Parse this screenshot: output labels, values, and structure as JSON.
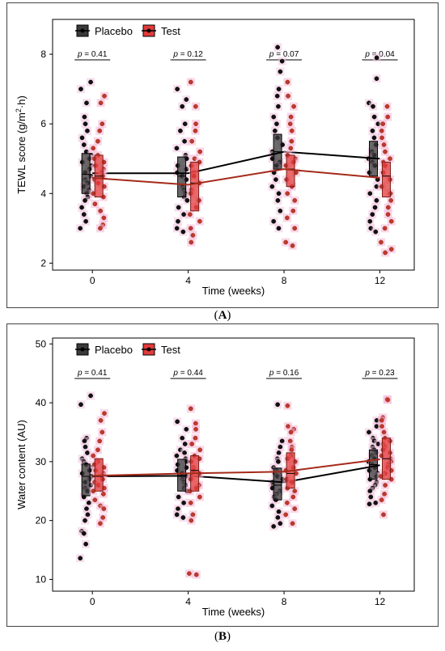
{
  "chart_data": [
    {
      "panel_label": "A",
      "type": "box",
      "xlabel": "Time (weeks)",
      "ylabel_main": "TEWL score (g/m",
      "ylabel_sup": "2",
      "ylabel_tail": "·h)",
      "categories": [
        "0",
        "4",
        "8",
        "12"
      ],
      "ylim": [
        1.8,
        9.0
      ],
      "yticks": [
        2,
        4,
        6,
        8
      ],
      "p_values": [
        "p = 0.41",
        "p = 0.12",
        "p = 0.07",
        "p = 0.04"
      ],
      "legend": {
        "placement": "top-left",
        "items": [
          "Placebo",
          "Test"
        ]
      },
      "series": [
        {
          "name": "Placebo",
          "color": "#1a1a1a",
          "means": [
            4.58,
            4.58,
            5.2,
            5.0
          ],
          "boxes": [
            [
              4.0,
              4.55,
              5.15
            ],
            [
              3.9,
              4.5,
              5.05
            ],
            [
              4.7,
              5.2,
              5.7
            ],
            [
              4.5,
              5.0,
              5.5
            ]
          ],
          "points": [
            [
              7.2,
              7.0,
              6.6,
              6.2,
              6.0,
              5.8,
              5.6,
              5.4,
              5.2,
              5.1,
              5.0,
              4.9,
              4.8,
              4.7,
              4.6,
              4.5,
              4.4,
              4.3,
              4.2,
              4.1,
              4.0,
              3.9,
              3.8,
              3.6,
              3.4,
              3.2,
              3.0
            ],
            [
              7.0,
              6.7,
              6.5,
              6.0,
              5.8,
              5.5,
              5.3,
              5.1,
              5.0,
              4.8,
              4.7,
              4.6,
              4.5,
              4.4,
              4.2,
              4.1,
              4.0,
              3.9,
              3.8,
              3.6,
              3.4,
              3.2,
              3.0,
              2.9
            ],
            [
              8.2,
              7.8,
              7.5,
              7.0,
              6.8,
              6.5,
              6.2,
              6.0,
              5.8,
              5.6,
              5.4,
              5.2,
              5.1,
              5.0,
              4.9,
              4.8,
              4.6,
              4.4,
              4.2,
              4.0,
              3.8,
              3.5,
              3.2,
              3.0
            ],
            [
              7.9,
              7.3,
              6.6,
              6.5,
              6.2,
              6.0,
              5.8,
              5.6,
              5.4,
              5.2,
              5.1,
              5.0,
              4.9,
              4.8,
              4.6,
              4.4,
              4.2,
              4.0,
              3.8,
              3.6,
              3.4,
              3.2,
              3.0,
              2.9
            ]
          ]
        },
        {
          "name": "Test",
          "color": "#d32f2f",
          "means": [
            4.45,
            4.25,
            4.7,
            4.45
          ],
          "boxes": [
            [
              3.9,
              4.5,
              5.1
            ],
            [
              3.5,
              4.3,
              4.9
            ],
            [
              4.2,
              4.7,
              5.1
            ],
            [
              3.9,
              4.5,
              4.9
            ]
          ],
          "points": [
            [
              6.8,
              6.6,
              6.0,
              5.8,
              5.5,
              5.3,
              5.1,
              5.0,
              4.9,
              4.8,
              4.7,
              4.6,
              4.5,
              4.4,
              4.3,
              4.2,
              4.0,
              3.9,
              3.7,
              3.5,
              3.3,
              3.1,
              3.0
            ],
            [
              7.2,
              6.5,
              6.0,
              5.8,
              5.5,
              5.2,
              5.0,
              4.9,
              4.8,
              4.6,
              4.5,
              4.3,
              4.1,
              4.0,
              3.8,
              3.6,
              3.4,
              3.2,
              3.0,
              2.8,
              2.6
            ],
            [
              7.2,
              6.8,
              6.5,
              6.2,
              6.0,
              5.8,
              5.5,
              5.3,
              5.1,
              5.0,
              4.9,
              4.8,
              4.6,
              4.4,
              4.2,
              4.0,
              3.8,
              3.5,
              3.3,
              3.0,
              2.6,
              2.5
            ],
            [
              6.5,
              6.2,
              6.0,
              5.8,
              5.6,
              5.4,
              5.2,
              5.0,
              4.9,
              4.8,
              4.6,
              4.4,
              4.2,
              4.0,
              3.8,
              3.6,
              3.4,
              3.2,
              3.0,
              2.6,
              2.4,
              2.3
            ]
          ]
        }
      ]
    },
    {
      "panel_label": "B",
      "type": "box",
      "xlabel": "Time (weeks)",
      "ylabel_main": "Water content (AU)",
      "ylabel_sup": "",
      "ylabel_tail": "",
      "categories": [
        "0",
        "4",
        "8",
        "12"
      ],
      "ylim": [
        8,
        51
      ],
      "yticks": [
        10,
        20,
        30,
        40,
        50
      ],
      "p_values": [
        "p = 0.41",
        "p = 0.44",
        "p = 0.16",
        "p = 0.23"
      ],
      "legend": {
        "placement": "top-left",
        "items": [
          "Placebo",
          "Test"
        ]
      },
      "series": [
        {
          "name": "Placebo",
          "color": "#1a1a1a",
          "means": [
            27.5,
            27.6,
            26.5,
            29.4
          ],
          "boxes": [
            [
              24.2,
              27.5,
              29.6
            ],
            [
              25.0,
              28.0,
              30.4
            ],
            [
              23.5,
              26.0,
              28.9
            ],
            [
              27.0,
              29.5,
              32.0
            ]
          ],
          "points": [
            [
              41.2,
              39.7,
              34.0,
              33.5,
              32.5,
              31.5,
              30.5,
              30.0,
              29.5,
              29.0,
              28.5,
              28.0,
              27.5,
              27.0,
              26.5,
              26.0,
              25.5,
              25.0,
              24.0,
              23.0,
              22.0,
              21.0,
              20.0,
              18.2,
              17.8,
              16.0,
              13.6
            ],
            [
              36.8,
              35.5,
              34.0,
              33.0,
              32.0,
              31.5,
              31.0,
              30.5,
              30.0,
              29.5,
              29.0,
              28.5,
              28.0,
              27.5,
              27.0,
              26.5,
              26.0,
              25.5,
              25.0,
              24.0,
              23.0,
              22.0,
              21.0,
              20.5
            ],
            [
              39.7,
              33.5,
              32.5,
              31.5,
              30.5,
              30.0,
              29.0,
              28.5,
              28.0,
              27.5,
              27.0,
              26.5,
              26.0,
              25.5,
              25.0,
              24.5,
              24.0,
              23.5,
              22.5,
              21.5,
              20.5,
              19.5,
              19.0
            ],
            [
              37.0,
              36.0,
              35.0,
              34.0,
              33.5,
              33.0,
              32.5,
              32.0,
              31.5,
              31.0,
              30.5,
              30.0,
              29.5,
              29.0,
              28.5,
              28.0,
              27.5,
              27.0,
              26.5,
              26.0,
              25.5,
              25.0,
              24.0,
              23.0,
              22.8
            ]
          ]
        },
        {
          "name": "Test",
          "color": "#d32f2f",
          "means": [
            27.6,
            28.0,
            28.3,
            30.4
          ],
          "boxes": [
            [
              25.0,
              27.5,
              30.5
            ],
            [
              25.0,
              28.5,
              31.0
            ],
            [
              25.5,
              28.0,
              31.5
            ],
            [
              27.0,
              30.5,
              34.0
            ]
          ],
          "points": [
            [
              38.2,
              37.0,
              35.0,
              33.5,
              32.0,
              31.0,
              30.0,
              29.5,
              29.0,
              28.5,
              28.0,
              27.5,
              27.0,
              26.5,
              26.0,
              25.5,
              25.0,
              24.5,
              23.5,
              22.5,
              22.0,
              20.5,
              19.5
            ],
            [
              39.0,
              36.5,
              35.5,
              34.0,
              33.0,
              32.0,
              31.0,
              30.5,
              30.0,
              29.0,
              28.5,
              28.0,
              27.5,
              27.0,
              26.0,
              25.5,
              25.0,
              24.0,
              23.0,
              21.0,
              20.0,
              11.0,
              10.8
            ],
            [
              39.5,
              36.0,
              35.5,
              35.0,
              33.5,
              32.5,
              32.0,
              31.0,
              30.5,
              30.0,
              29.0,
              28.5,
              28.0,
              27.0,
              26.5,
              25.5,
              25.0,
              24.0,
              23.0,
              22.0,
              21.0,
              19.5
            ],
            [
              40.6,
              40.5,
              37.5,
              37.0,
              36.0,
              35.0,
              34.0,
              33.5,
              33.0,
              32.5,
              32.0,
              31.5,
              31.0,
              30.5,
              30.0,
              29.5,
              29.0,
              28.5,
              28.0,
              27.5,
              27.0,
              26.0,
              24.5,
              23.5,
              21.0
            ]
          ]
        }
      ]
    }
  ]
}
